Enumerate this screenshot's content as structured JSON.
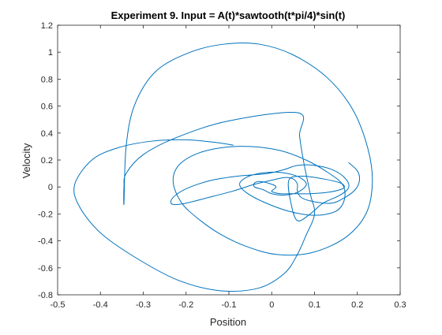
{
  "chart_data": {
    "type": "line",
    "title": "Experiment 9. Input = A(t)*sawtooth(t*pi/4)*sin(t)",
    "xlabel": "Position",
    "ylabel": "Velocity",
    "xlim": [
      -0.5,
      0.3
    ],
    "ylim": [
      -0.8,
      1.2
    ],
    "xticks": [
      -0.5,
      -0.4,
      -0.3,
      -0.2,
      -0.1,
      0,
      0.1,
      0.2,
      0.3
    ],
    "yticks": [
      -0.8,
      -0.6,
      -0.4,
      -0.2,
      0,
      0.2,
      0.4,
      0.6,
      0.8,
      1,
      1.2
    ],
    "xtick_labels": [
      "-0.5",
      "-0.4",
      "-0.3",
      "-0.2",
      "-0.1",
      "0",
      "0.1",
      "0.2",
      "0.3"
    ],
    "ytick_labels": [
      "-0.8",
      "-0.6",
      "-0.4",
      "-0.2",
      "0",
      "0.2",
      "0.4",
      "0.6",
      "0.8",
      "1",
      "1.2"
    ],
    "grid": false,
    "line_color": "#0072BD",
    "series": [
      {
        "x": [
          -0.09,
          -0.13,
          -0.2,
          -0.28,
          -0.36,
          -0.42,
          -0.46,
          -0.45,
          -0.4,
          -0.32,
          -0.22,
          -0.12,
          -0.03,
          0.03,
          0.06,
          0.08,
          0.1,
          0.09,
          0.075,
          0.065,
          0.062,
          -0.1,
          -0.22,
          -0.3,
          -0.34,
          -0.345,
          -0.345,
          -0.34,
          -0.32,
          -0.27,
          -0.19,
          -0.11,
          -0.03,
          0.05,
          0.13,
          0.19,
          0.225,
          0.235,
          0.22,
          0.17,
          0.09,
          0.01,
          -0.06,
          -0.12,
          -0.17,
          -0.21,
          -0.23,
          -0.22,
          -0.18,
          -0.12,
          -0.05,
          0.02,
          0.08,
          0.13,
          0.165,
          0.17,
          0.15,
          0.1,
          0.04,
          -0.02,
          -0.06,
          -0.075,
          -0.06,
          -0.03,
          0.01,
          0.05,
          0.075,
          0.08,
          0.06,
          0.03,
          0.0,
          -0.02,
          -0.04,
          -0.04,
          -0.025,
          0.0,
          0.01,
          0.0,
          0.005,
          0.02,
          0.05,
          0.09,
          0.13,
          0.16,
          0.17,
          0.16,
          0.12,
          0.07,
          0.04,
          0.045,
          0.06,
          0.09,
          0.12,
          0.16,
          0.18,
          0.17,
          0.14,
          0.1,
          0.06,
          0.03,
          -0.01,
          -0.08,
          -0.14,
          -0.19,
          -0.22,
          -0.235,
          -0.23,
          -0.2,
          -0.15,
          -0.09,
          -0.04,
          0.0,
          0.03,
          0.05,
          0.06,
          0.06,
          0.07,
          0.1,
          0.14,
          0.17,
          0.195,
          0.205,
          0.2,
          0.18
        ],
        "y": [
          0.31,
          0.33,
          0.35,
          0.34,
          0.29,
          0.2,
          0.02,
          -0.14,
          -0.34,
          -0.52,
          -0.69,
          -0.77,
          -0.75,
          -0.64,
          -0.5,
          -0.36,
          -0.2,
          -0.05,
          0.18,
          0.38,
          0.55,
          0.49,
          0.37,
          0.24,
          0.1,
          0.0,
          -0.12,
          0.3,
          0.61,
          0.86,
          1.0,
          1.06,
          1.06,
          0.98,
          0.81,
          0.57,
          0.28,
          0.03,
          -0.2,
          -0.38,
          -0.49,
          -0.5,
          -0.44,
          -0.35,
          -0.24,
          -0.12,
          0.03,
          0.15,
          0.24,
          0.29,
          0.3,
          0.27,
          0.2,
          0.11,
          0.02,
          -0.09,
          -0.18,
          -0.21,
          -0.18,
          -0.11,
          -0.04,
          0.02,
          0.07,
          0.1,
          0.11,
          0.09,
          0.05,
          0.01,
          -0.04,
          -0.06,
          -0.05,
          -0.02,
          0.0,
          0.03,
          0.04,
          0.02,
          0.0,
          -0.03,
          -0.04,
          -0.05,
          -0.05,
          -0.05,
          -0.04,
          -0.02,
          0.0,
          0.03,
          0.06,
          0.08,
          0.05,
          -0.12,
          -0.25,
          -0.2,
          -0.12,
          -0.06,
          0.0,
          0.07,
          0.13,
          0.16,
          0.16,
          0.13,
          0.1,
          0.08,
          0.05,
          0.0,
          -0.05,
          -0.1,
          -0.13,
          -0.12,
          -0.08,
          -0.03,
          0.02,
          0.05,
          0.07,
          0.06,
          0.02,
          -0.03,
          -0.08,
          -0.11,
          -0.12,
          -0.08,
          -0.02,
          0.05,
          0.12,
          0.18
        ]
      }
    ]
  }
}
